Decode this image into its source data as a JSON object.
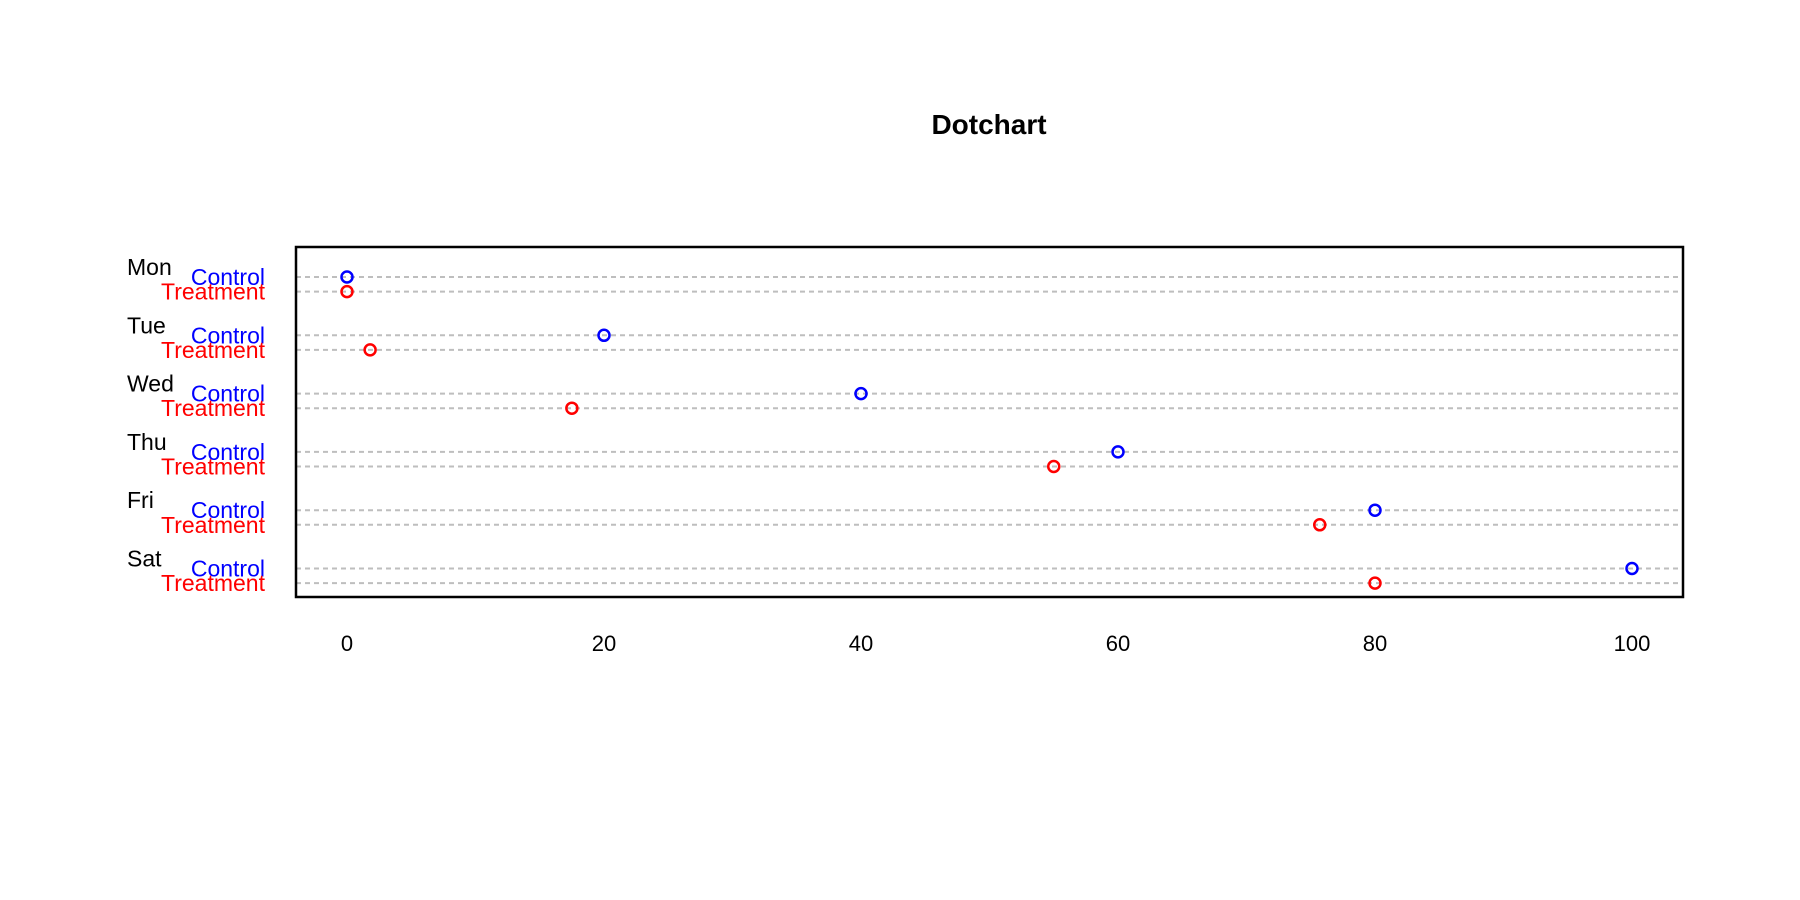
{
  "chart_data": {
    "type": "scatter",
    "subtype": "dotchart",
    "title": "Dotchart",
    "xlabel": "",
    "ylabel": "",
    "xlim": [
      0,
      100
    ],
    "x_ticks": [
      0,
      20,
      40,
      60,
      80,
      100
    ],
    "x_tick_labels": [
      "0",
      "20",
      "40",
      "60",
      "80",
      "100"
    ],
    "grid": "dashed horizontal line per row",
    "legend": "none",
    "groups": [
      "Mon",
      "Tue",
      "Wed",
      "Thu",
      "Fri",
      "Sat"
    ],
    "series": [
      {
        "name": "Control",
        "color": "#0000ff",
        "values": [
          0,
          20,
          40,
          60,
          80,
          100
        ]
      },
      {
        "name": "Treatment",
        "color": "#ff0000",
        "values": [
          0,
          1.8,
          17.5,
          55,
          75.7,
          80
        ]
      }
    ],
    "gridline_color": "#bebebe"
  }
}
